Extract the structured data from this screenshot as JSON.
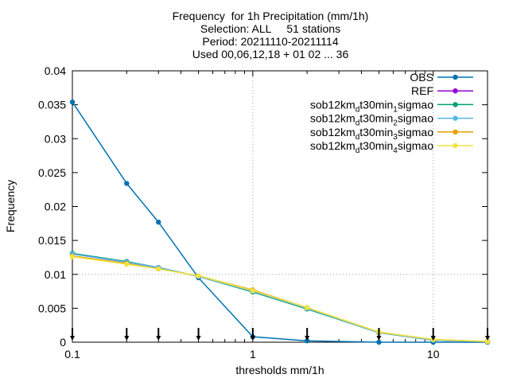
{
  "chart_data": {
    "type": "line",
    "title_lines": [
      "Frequency  for 1h Precipitation (mm/1h)",
      "Selection: ALL     51 stations",
      "Period: 20211110-20211114",
      "Used 00,06,12,18 + 01 02 ... 36"
    ],
    "xlabel": "thresholds mm/1h",
    "ylabel": "Frequency",
    "xscale": "log",
    "xlim": [
      0.1,
      20
    ],
    "ylim": [
      0,
      0.04
    ],
    "x_ticks": [
      "0.1",
      "1",
      "10"
    ],
    "y_ticks": [
      "0",
      "0.005",
      "0.01",
      "0.015",
      "0.02",
      "0.025",
      "0.03",
      "0.035",
      "0.04"
    ],
    "grid": "dotted at x=1, x=10 and y=0.01",
    "legend_position": "top-right",
    "x": [
      0.1,
      0.2,
      0.3,
      0.5,
      1,
      2,
      5,
      10,
      20
    ],
    "series": [
      {
        "name": "OBS",
        "color": "#0072b2",
        "marker": "circle",
        "values": [
          0.0354,
          0.0234,
          0.0177,
          0.0095,
          0.0008,
          0.0002,
          0.0,
          0.0,
          0.0
        ]
      },
      {
        "name": "REF",
        "color": "#9400d3",
        "marker": "circle",
        "values": [
          0.013,
          0.0118,
          0.011,
          0.0097,
          0.0075,
          0.005,
          0.0014,
          0.0003,
          0.0001
        ]
      },
      {
        "name": "sob12km_dt30min_1sigmao",
        "color": "#009e73",
        "marker": "circle",
        "values": [
          0.0131,
          0.0119,
          0.011,
          0.0097,
          0.0074,
          0.0049,
          0.0014,
          0.0003,
          0.0001
        ]
      },
      {
        "name": "sob12km_dt30min_2sigmao",
        "color": "#56b4e9",
        "marker": "circle",
        "values": [
          0.013,
          0.0118,
          0.011,
          0.0097,
          0.0075,
          0.005,
          0.0014,
          0.0003,
          0.0001
        ]
      },
      {
        "name": "sob12km_dt30min_3sigmao",
        "color": "#e69f00",
        "marker": "circle",
        "values": [
          0.0127,
          0.0116,
          0.0108,
          0.0098,
          0.0077,
          0.0051,
          0.0015,
          0.0004,
          0.0001
        ]
      },
      {
        "name": "sob12km_dt30min_4sigmao",
        "color": "#f0e442",
        "marker": "circle",
        "values": [
          0.0126,
          0.0115,
          0.0108,
          0.0098,
          0.0076,
          0.0051,
          0.0015,
          0.0004,
          0.0001
        ]
      }
    ],
    "legend": [
      {
        "prefix": "OBS",
        "sub": "",
        "suffix1": "",
        "sub2": "",
        "suffix2": ""
      },
      {
        "prefix": "REF",
        "sub": "",
        "suffix1": "",
        "sub2": "",
        "suffix2": ""
      },
      {
        "prefix": "sob12km",
        "sub": "d",
        "suffix1": "t30min",
        "sub2": "1",
        "suffix2": "sigmao"
      },
      {
        "prefix": "sob12km",
        "sub": "d",
        "suffix1": "t30min",
        "sub2": "2",
        "suffix2": "sigmao"
      },
      {
        "prefix": "sob12km",
        "sub": "d",
        "suffix1": "t30min",
        "sub2": "3",
        "suffix2": "sigmao"
      },
      {
        "prefix": "sob12km",
        "sub": "d",
        "suffix1": "t30min",
        "sub2": "4",
        "suffix2": "sigmao"
      }
    ],
    "threshold_markers": [
      0.1,
      0.2,
      0.3,
      0.5,
      1,
      2,
      5,
      10,
      20
    ]
  }
}
